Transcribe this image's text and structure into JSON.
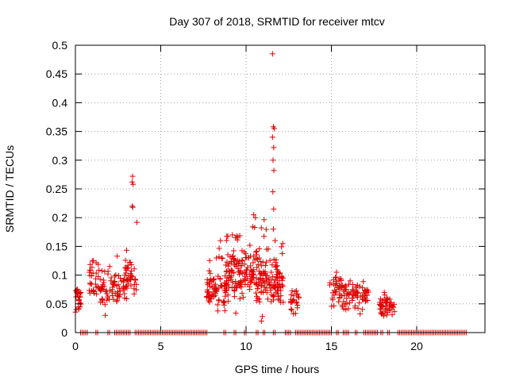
{
  "chart_data": {
    "type": "scatter",
    "title": "Day 307 of 2018, SRMTID for receiver mtcv",
    "xlabel": "GPS time / hours",
    "ylabel": "SRMTID / TECUs",
    "xlim": [
      0,
      24
    ],
    "ylim": [
      0,
      0.5
    ],
    "xticks": [
      0,
      5,
      10,
      15,
      20
    ],
    "xtick_labels": [
      "0",
      "5",
      "10",
      "15",
      "20"
    ],
    "yticks": [
      0,
      0.05,
      0.1,
      0.15,
      0.2,
      0.25,
      0.3,
      0.35,
      0.4,
      0.45,
      0.5
    ],
    "ytick_labels": [
      "0",
      "0.05",
      "0.1",
      "0.15",
      "0.2",
      "0.25",
      "0.3",
      "0.35",
      "0.4",
      "0.45",
      "0.5"
    ],
    "grid": true,
    "marker": "+",
    "color": "#e00000",
    "series": [
      {
        "name": "SRMTID",
        "clusters": [
          {
            "start": 0.0,
            "end": 0.35,
            "base": 0.06,
            "spread": 0.03,
            "count": 24,
            "peak": 0.08
          },
          {
            "start": 0.8,
            "end": 1.4,
            "base": 0.085,
            "spread": 0.03,
            "count": 30,
            "peak": 0.125
          },
          {
            "start": 1.4,
            "end": 2.0,
            "base": 0.07,
            "spread": 0.03,
            "count": 30,
            "peak": 0.11
          },
          {
            "start": 2.0,
            "end": 2.7,
            "base": 0.075,
            "spread": 0.03,
            "count": 32,
            "peak": 0.13
          },
          {
            "start": 2.8,
            "end": 3.6,
            "base": 0.09,
            "spread": 0.04,
            "count": 50,
            "peak": 0.22
          },
          {
            "start": 7.7,
            "end": 8.8,
            "base": 0.075,
            "spread": 0.04,
            "count": 70,
            "peak": 0.15
          },
          {
            "start": 8.8,
            "end": 10.2,
            "base": 0.1,
            "spread": 0.05,
            "count": 110,
            "peak": 0.17
          },
          {
            "start": 10.2,
            "end": 11.3,
            "base": 0.095,
            "spread": 0.05,
            "count": 90,
            "peak": 0.2
          },
          {
            "start": 11.3,
            "end": 12.2,
            "base": 0.09,
            "spread": 0.05,
            "count": 70,
            "peak": 0.15
          },
          {
            "start": 12.6,
            "end": 13.1,
            "base": 0.055,
            "spread": 0.03,
            "count": 24,
            "peak": 0.08
          },
          {
            "start": 14.9,
            "end": 15.8,
            "base": 0.07,
            "spread": 0.03,
            "count": 45,
            "peak": 0.1
          },
          {
            "start": 15.8,
            "end": 17.2,
            "base": 0.06,
            "spread": 0.03,
            "count": 65,
            "peak": 0.09
          },
          {
            "start": 17.8,
            "end": 18.7,
            "base": 0.045,
            "spread": 0.02,
            "count": 50,
            "peak": 0.07
          }
        ],
        "notable_points": [
          {
            "x": 3.35,
            "y": 0.272
          },
          {
            "x": 3.32,
            "y": 0.262
          },
          {
            "x": 3.38,
            "y": 0.258
          },
          {
            "x": 3.33,
            "y": 0.22
          },
          {
            "x": 3.36,
            "y": 0.218
          },
          {
            "x": 10.45,
            "y": 0.205
          },
          {
            "x": 10.55,
            "y": 0.2
          },
          {
            "x": 11.55,
            "y": 0.485
          },
          {
            "x": 11.6,
            "y": 0.358
          },
          {
            "x": 11.65,
            "y": 0.355
          },
          {
            "x": 11.55,
            "y": 0.34
          },
          {
            "x": 11.62,
            "y": 0.322
          },
          {
            "x": 11.58,
            "y": 0.3
          },
          {
            "x": 11.63,
            "y": 0.282
          },
          {
            "x": 11.57,
            "y": 0.245
          },
          {
            "x": 11.62,
            "y": 0.215
          },
          {
            "x": 11.6,
            "y": 0.18
          },
          {
            "x": 11.7,
            "y": 0.16
          },
          {
            "x": 12.15,
            "y": 0.155
          },
          {
            "x": 9.2,
            "y": 0.17
          },
          {
            "x": 8.5,
            "y": 0.16
          },
          {
            "x": 1.05,
            "y": 0.125
          },
          {
            "x": 2.45,
            "y": 0.133
          },
          {
            "x": 15.3,
            "y": 0.105
          },
          {
            "x": 16.1,
            "y": 0.09
          },
          {
            "x": 18.1,
            "y": 0.07
          },
          {
            "x": 9.4,
            "y": 0.034
          },
          {
            "x": 10.95,
            "y": 0.028
          },
          {
            "x": 10.9,
            "y": 0.02
          },
          {
            "x": 1.75,
            "y": 0.03
          },
          {
            "x": 0.05,
            "y": 0.04
          }
        ],
        "zero_segments": [
          [
            0.3,
            0.7
          ],
          [
            1.2,
            1.3
          ],
          [
            1.9,
            2.0
          ],
          [
            2.3,
            2.4
          ],
          [
            2.5,
            3.2
          ],
          [
            3.5,
            7.7
          ],
          [
            8.7,
            8.8
          ],
          [
            9.3,
            9.4
          ],
          [
            9.9,
            10.0
          ],
          [
            10.6,
            10.7
          ],
          [
            11.0,
            11.1
          ],
          [
            11.6,
            11.7
          ],
          [
            12.3,
            12.6
          ],
          [
            12.9,
            15.0
          ],
          [
            15.3,
            15.4
          ],
          [
            15.7,
            16.0
          ],
          [
            16.4,
            16.5
          ],
          [
            16.9,
            17.7
          ],
          [
            17.9,
            18.0
          ],
          [
            18.3,
            18.4
          ],
          [
            18.9,
            22.9
          ]
        ]
      }
    ]
  }
}
